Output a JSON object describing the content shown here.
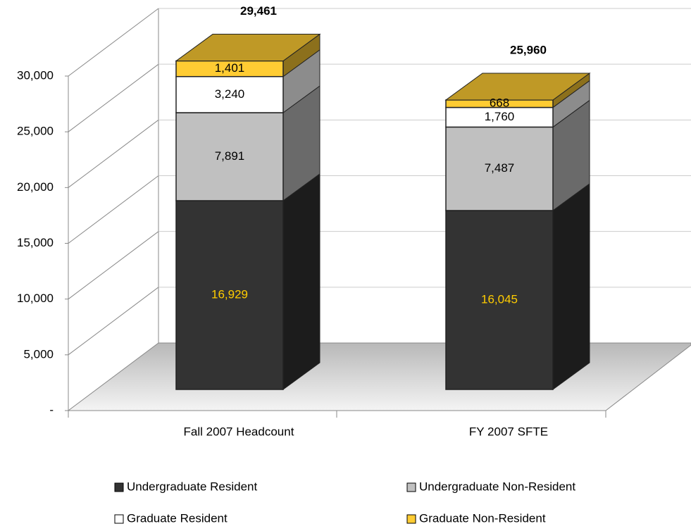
{
  "chart_data": {
    "type": "bar3d_stacked",
    "categories": [
      "Fall 2007 Headcount",
      "FY 2007 SFTE"
    ],
    "series": [
      {
        "name": "Undergraduate Resident",
        "color": "#333333",
        "label_color": "#ffcc00",
        "values": [
          16929,
          16045
        ],
        "value_labels": [
          "16,929",
          "16,045"
        ]
      },
      {
        "name": "Undergraduate Non-Resident",
        "color": "#c0c0c0",
        "label_color": "#000000",
        "values": [
          7891,
          7487
        ],
        "value_labels": [
          "7,891",
          "7,487"
        ]
      },
      {
        "name": "Graduate Resident",
        "color": "#ffffff",
        "label_color": "#000000",
        "values": [
          3240,
          1760
        ],
        "value_labels": [
          "3,240",
          "1,760"
        ]
      },
      {
        "name": "Graduate Non-Resident",
        "color": "#ffcc33",
        "label_color": "#000000",
        "values": [
          1401,
          668
        ],
        "value_labels": [
          "1,401",
          "668"
        ]
      }
    ],
    "totals": [
      29461,
      25960
    ],
    "total_labels": [
      "29,461",
      "25,960"
    ],
    "ylim": [
      0,
      30000
    ],
    "yticks": [
      {
        "value": 0,
        "label": "-"
      },
      {
        "value": 5000,
        "label": "5,000"
      },
      {
        "value": 10000,
        "label": "10,000"
      },
      {
        "value": 15000,
        "label": "15,000"
      },
      {
        "value": 20000,
        "label": "20,000"
      },
      {
        "value": 25000,
        "label": "25,000"
      },
      {
        "value": 30000,
        "label": "30,000"
      }
    ],
    "grid": true
  }
}
